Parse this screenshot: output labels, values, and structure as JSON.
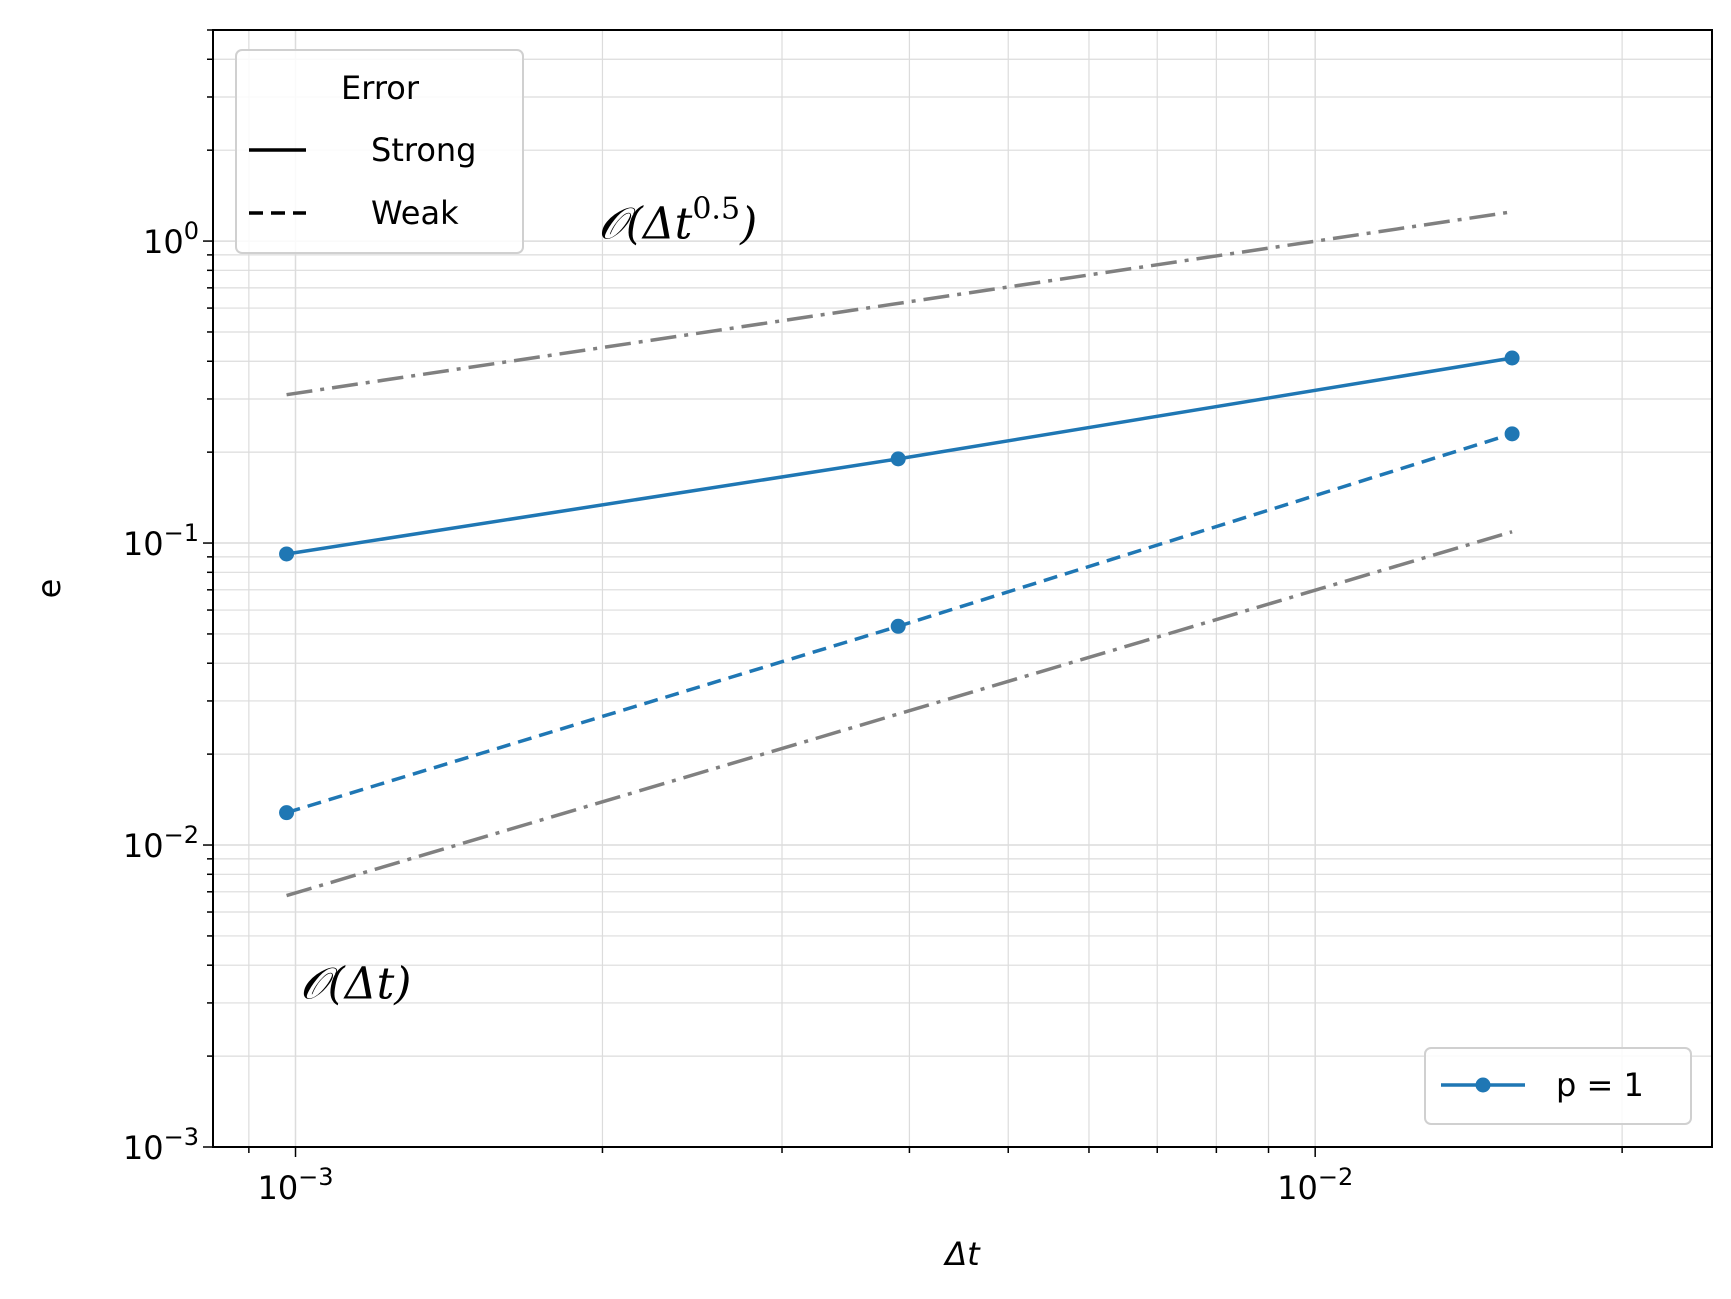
{
  "chart_data": {
    "type": "line",
    "xscale": "log",
    "yscale": "log",
    "xlim": [
      0.00083,
      0.0245
    ],
    "ylim": [
      0.001,
      5.0
    ],
    "xlabel": "Δt",
    "ylabel": "e",
    "grid": true,
    "x_ticks": [
      {
        "value": 0.001,
        "base": "10",
        "exp": "−3"
      },
      {
        "value": 0.01,
        "base": "10",
        "exp": "−2"
      }
    ],
    "y_ticks": [
      {
        "value": 0.001,
        "base": "10",
        "exp": "−3"
      },
      {
        "value": 0.01,
        "base": "10",
        "exp": "−2"
      },
      {
        "value": 0.1,
        "base": "10",
        "exp": "−1"
      },
      {
        "value": 1,
        "base": "10",
        "exp": "0"
      }
    ],
    "series": [
      {
        "name": "p = 1",
        "kind": "Strong",
        "color": "#1f77b4",
        "dash": "solid",
        "x": [
          0.00098,
          0.0039,
          0.0156
        ],
        "y": [
          0.092,
          0.19,
          0.41
        ]
      },
      {
        "name": "p = 1",
        "kind": "Weak",
        "color": "#1f77b4",
        "dash": "dashed",
        "x": [
          0.00098,
          0.0039,
          0.0156
        ],
        "y": [
          0.0128,
          0.053,
          0.23
        ]
      }
    ],
    "reference_lines": [
      {
        "color": "#808080",
        "dash": "dashdot",
        "x": [
          0.00098,
          0.0156
        ],
        "y": [
          0.31,
          1.25
        ]
      },
      {
        "color": "#808080",
        "dash": "dashdot",
        "x": [
          0.00098,
          0.0156
        ],
        "y": [
          0.0068,
          0.109
        ]
      }
    ],
    "annotations": [
      {
        "text": "𝒪(Δt",
        "sup": "0.5",
        "tail": ")",
        "x": 0.00198,
        "y": 1.02
      },
      {
        "text": "𝒪(Δt)",
        "sup": "",
        "tail": "",
        "x": 0.00101,
        "y": 0.0031
      }
    ],
    "legend_style": {
      "title": "Error",
      "entries": [
        {
          "label": "Strong",
          "dash": "solid"
        },
        {
          "label": "Weak",
          "dash": "dashed"
        }
      ],
      "placement": "top-left"
    },
    "legend_series": {
      "entries": [
        {
          "label": "p = 1",
          "color": "#1f77b4"
        }
      ],
      "placement": "bottom-right"
    }
  }
}
